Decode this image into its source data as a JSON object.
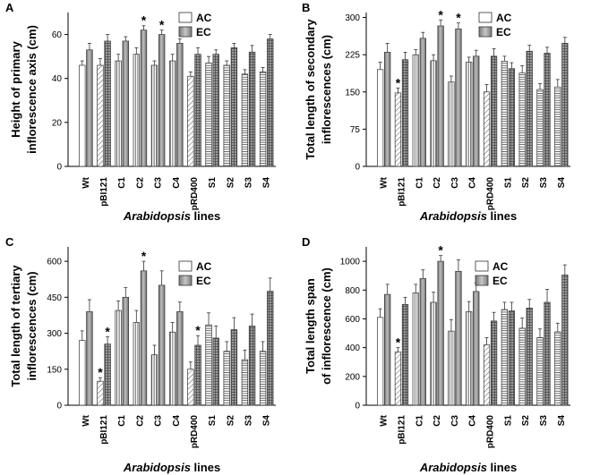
{
  "chart_data": [
    {
      "panel": "A",
      "type": "bar",
      "ylabel": [
        "Height  of primary",
        "inflorescence axis (cm)"
      ],
      "xlabel": {
        "italic": "Arabidopsis",
        "rest": " lines"
      },
      "ylim": [
        0,
        70
      ],
      "yticks": [
        0,
        20,
        40,
        60
      ],
      "legend": [
        "AC",
        "EC"
      ],
      "categories": [
        "Wt",
        "pBI121",
        "C1",
        "C2",
        "C3",
        "C4",
        "pRD400",
        "S1",
        "S2",
        "S3",
        "S4"
      ],
      "series": [
        {
          "name": "AC",
          "values": [
            46,
            46,
            48,
            51,
            46,
            48,
            41,
            47,
            46,
            42,
            43
          ],
          "errors": [
            2,
            3,
            3,
            3,
            2,
            3,
            2,
            3,
            2,
            2,
            2
          ]
        },
        {
          "name": "EC",
          "values": [
            53,
            57,
            57,
            62,
            60,
            56,
            51,
            51,
            54,
            52,
            58
          ],
          "errors": [
            3,
            3,
            2,
            2,
            2,
            2,
            3,
            2,
            2,
            3,
            2
          ]
        }
      ],
      "significant": [
        {
          "category": "C2",
          "series": "EC",
          "label": "*"
        },
        {
          "category": "C3",
          "series": "EC",
          "label": "*"
        }
      ]
    },
    {
      "panel": "B",
      "type": "bar",
      "ylabel": [
        "Total length of secondary",
        "inflorescences (cm)"
      ],
      "xlabel": {
        "italic": "Arabidopsis",
        "rest": " lines"
      },
      "ylim": [
        0,
        310
      ],
      "yticks": [
        0,
        75,
        150,
        225,
        300
      ],
      "legend": [
        "AC",
        "EC"
      ],
      "categories": [
        "Wt",
        "pBI121",
        "C1",
        "C2",
        "C3",
        "C4",
        "pRD400",
        "S1",
        "S2",
        "S3",
        "S4"
      ],
      "series": [
        {
          "name": "AC",
          "values": [
            195,
            148,
            225,
            213,
            170,
            210,
            150,
            212,
            188,
            155,
            160
          ],
          "errors": [
            15,
            10,
            10,
            12,
            12,
            10,
            15,
            10,
            15,
            12,
            15
          ]
        },
        {
          "name": "EC",
          "values": [
            230,
            215,
            258,
            283,
            277,
            222,
            222,
            197,
            232,
            228,
            248
          ],
          "errors": [
            18,
            15,
            12,
            12,
            12,
            12,
            15,
            12,
            12,
            12,
            12
          ]
        }
      ],
      "significant": [
        {
          "category": "pBI121",
          "series": "AC",
          "label": "*"
        },
        {
          "category": "C2",
          "series": "EC",
          "label": "*"
        },
        {
          "category": "C3",
          "series": "EC",
          "label": "*"
        }
      ]
    },
    {
      "panel": "C",
      "type": "bar",
      "ylabel": [
        "Total length of tertiary",
        "inflorescences (cm)"
      ],
      "xlabel": {
        "italic": "Arabidopsis",
        "rest": " lines"
      },
      "ylim": [
        0,
        660
      ],
      "yticks": [
        0,
        150,
        300,
        450,
        600
      ],
      "legend": [
        "AC",
        "EC"
      ],
      "categories": [
        "Wt",
        "pBI121",
        "C1",
        "C2",
        "C3",
        "C4",
        "pRD400",
        "S1",
        "S2",
        "S3",
        "S4"
      ],
      "series": [
        {
          "name": "AC",
          "values": [
            270,
            100,
            395,
            345,
            210,
            305,
            150,
            335,
            225,
            190,
            225
          ],
          "errors": [
            40,
            15,
            40,
            50,
            40,
            40,
            30,
            50,
            40,
            40,
            40
          ]
        },
        {
          "name": "EC",
          "values": [
            390,
            255,
            450,
            560,
            500,
            390,
            250,
            280,
            315,
            330,
            475
          ],
          "errors": [
            50,
            30,
            40,
            40,
            60,
            40,
            40,
            50,
            50,
            50,
            55
          ]
        }
      ],
      "significant": [
        {
          "category": "pBI121",
          "series": "AC",
          "label": "*"
        },
        {
          "category": "pBI121",
          "series": "EC",
          "label": "*"
        },
        {
          "category": "C2",
          "series": "EC",
          "label": "*"
        },
        {
          "category": "pRD400",
          "series": "EC",
          "label": "*"
        }
      ]
    },
    {
      "panel": "D",
      "type": "bar",
      "ylabel": [
        "Total length span",
        "of inflorescence (cm)"
      ],
      "xlabel": {
        "italic": "Arabidopsis",
        "rest": " lines"
      },
      "ylim": [
        0,
        1100
      ],
      "yticks": [
        0,
        200,
        400,
        600,
        800,
        1000
      ],
      "legend": [
        "AC",
        "EC"
      ],
      "categories": [
        "Wt",
        "pBI121",
        "C1",
        "C2",
        "C3",
        "C4",
        "pRD400",
        "S1",
        "S2",
        "S3",
        "S4"
      ],
      "series": [
        {
          "name": "AC",
          "values": [
            610,
            370,
            780,
            715,
            515,
            650,
            420,
            665,
            535,
            470,
            510
          ],
          "errors": [
            60,
            30,
            60,
            70,
            80,
            70,
            50,
            50,
            70,
            60,
            60
          ]
        },
        {
          "name": "EC",
          "values": [
            770,
            700,
            880,
            1000,
            930,
            790,
            585,
            655,
            675,
            715,
            905
          ],
          "errors": [
            70,
            50,
            60,
            40,
            80,
            60,
            60,
            60,
            60,
            90,
            70
          ]
        }
      ],
      "significant": [
        {
          "category": "pBI121",
          "series": "AC",
          "label": "*"
        },
        {
          "category": "C2",
          "series": "EC",
          "label": "*"
        }
      ]
    }
  ]
}
